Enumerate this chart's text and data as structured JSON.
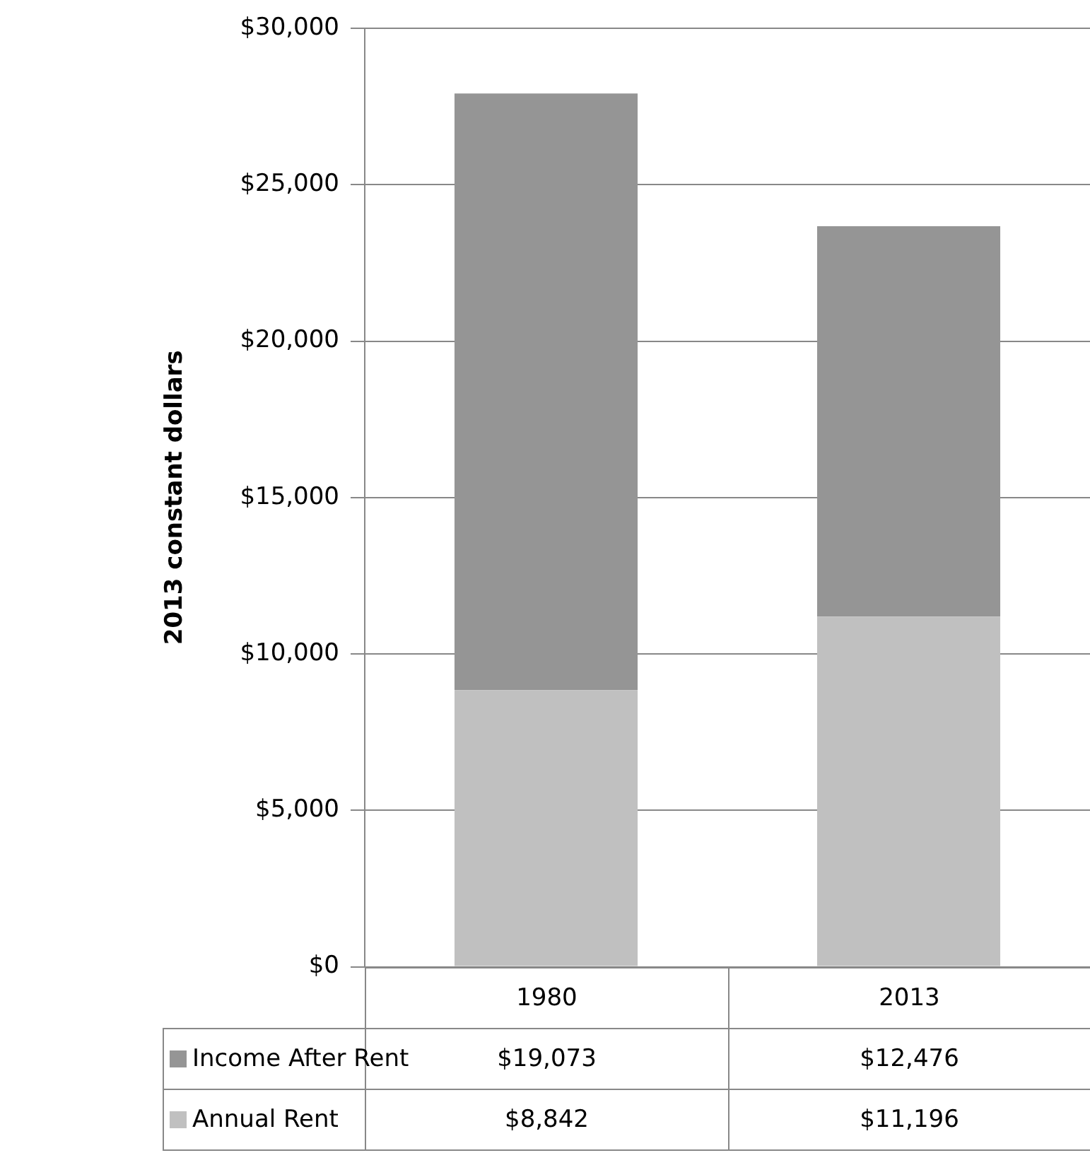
{
  "chart_data": {
    "type": "bar",
    "stacked": true,
    "ylabel": "2013 constant dollars",
    "categories": [
      "1980",
      "2013"
    ],
    "series": [
      {
        "name": "Annual Rent",
        "color": "#c0c0c0",
        "values": [
          8842,
          11196
        ],
        "value_labels": [
          "$8,842",
          "$11,196"
        ]
      },
      {
        "name": "Income After Rent",
        "color": "#959595",
        "values": [
          19073,
          12476
        ],
        "value_labels": [
          "$19,073",
          "$12,476"
        ]
      }
    ],
    "ylim": [
      0,
      30000
    ],
    "yticks": [
      {
        "value": 0,
        "label": "$0"
      },
      {
        "value": 5000,
        "label": "$5,000"
      },
      {
        "value": 10000,
        "label": "$10,000"
      },
      {
        "value": 15000,
        "label": "$15,000"
      },
      {
        "value": 20000,
        "label": "$20,000"
      },
      {
        "value": 25000,
        "label": "$25,000"
      },
      {
        "value": 30000,
        "label": "$30,000"
      }
    ],
    "grid": "y",
    "legend": "bottom"
  }
}
